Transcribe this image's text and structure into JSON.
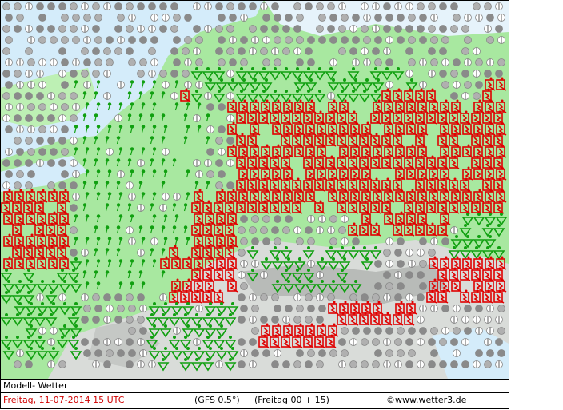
{
  "footer": {
    "model": "Modell- Wetter",
    "date": "Freitag, 11-07-2014  15 UTC",
    "run": "(GFS 0.5°)",
    "forecast": "(Freitag 00 + 15)",
    "source": "©www.wetter3.de"
  }
}
